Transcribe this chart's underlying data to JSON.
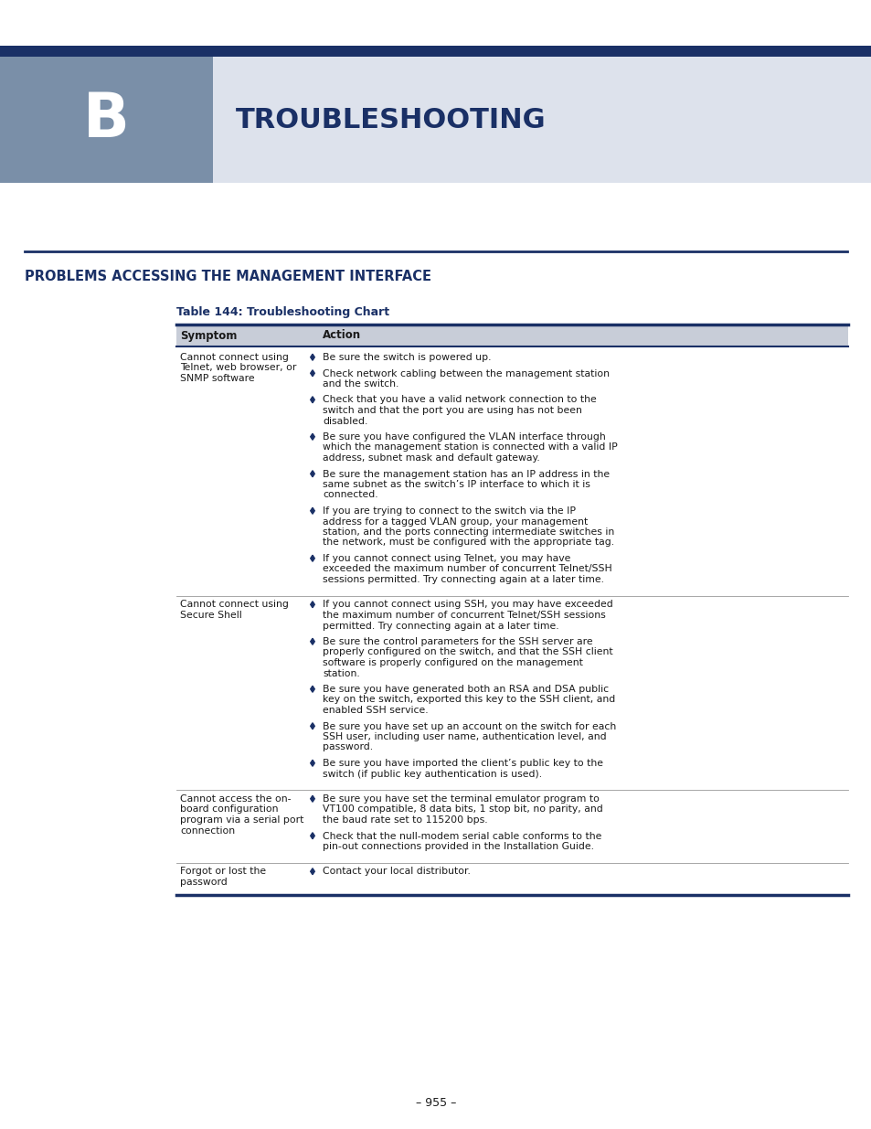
{
  "page_bg": "#ffffff",
  "header_bar_color": "#1a3066",
  "header_bg_left": "#7a8fa8",
  "header_bg_right": "#dde2ec",
  "header_letter": "B",
  "header_title": "Troubleshooting",
  "section_title": "Problems Accessing the Management Interface",
  "table_title": "Table 144: Troubleshooting Chart",
  "col_symptom": "Symptom",
  "col_action": "Action",
  "table_header_bg": "#c8cdd8",
  "table_border_color": "#1a3066",
  "diamond_color": "#1a3066",
  "text_color": "#1a1a1a",
  "title_color": "#1a3066",
  "page_number": "– 955 –",
  "rows": [
    {
      "symptom": "Cannot connect using\nTelnet, web browser, or\nSNMP software",
      "actions": [
        "Be sure the switch is powered up.",
        "Check network cabling between the management station\nand the switch.",
        "Check that you have a valid network connection to the\nswitch and that the port you are using has not been\ndisabled.",
        "Be sure you have configured the VLAN interface through\nwhich the management station is connected with a valid IP\naddress, subnet mask and default gateway.",
        "Be sure the management station has an IP address in the\nsame subnet as the switch’s IP interface to which it is\nconnected.",
        "If you are trying to connect to the switch via the IP\naddress for a tagged VLAN group, your management\nstation, and the ports connecting intermediate switches in\nthe network, must be configured with the appropriate tag.",
        "If you cannot connect using Telnet, you may have\nexceeded the maximum number of concurrent Telnet/SSH\nsessions permitted. Try connecting again at a later time."
      ]
    },
    {
      "symptom": "Cannot connect using\nSecure Shell",
      "actions": [
        "If you cannot connect using SSH, you may have exceeded\nthe maximum number of concurrent Telnet/SSH sessions\npermitted. Try connecting again at a later time.",
        "Be sure the control parameters for the SSH server are\nproperly configured on the switch, and that the SSH client\nsoftware is properly configured on the management\nstation.",
        "Be sure you have generated both an RSA and DSA public\nkey on the switch, exported this key to the SSH client, and\nenabled SSH service.",
        "Be sure you have set up an account on the switch for each\nSSH user, including user name, authentication level, and\npassword.",
        "Be sure you have imported the client’s public key to the\nswitch (if public key authentication is used)."
      ]
    },
    {
      "symptom": "Cannot access the on-\nboard configuration\nprogram via a serial port\nconnection",
      "actions": [
        "Be sure you have set the terminal emulator program to\nVT100 compatible, 8 data bits, 1 stop bit, no parity, and\nthe baud rate set to 115200 bps.",
        "Check that the null-modem serial cable conforms to the\npin-out connections provided in the Installation Guide."
      ]
    },
    {
      "symptom": "Forgot or lost the\npassword",
      "actions": [
        "Contact your local distributor."
      ]
    }
  ]
}
